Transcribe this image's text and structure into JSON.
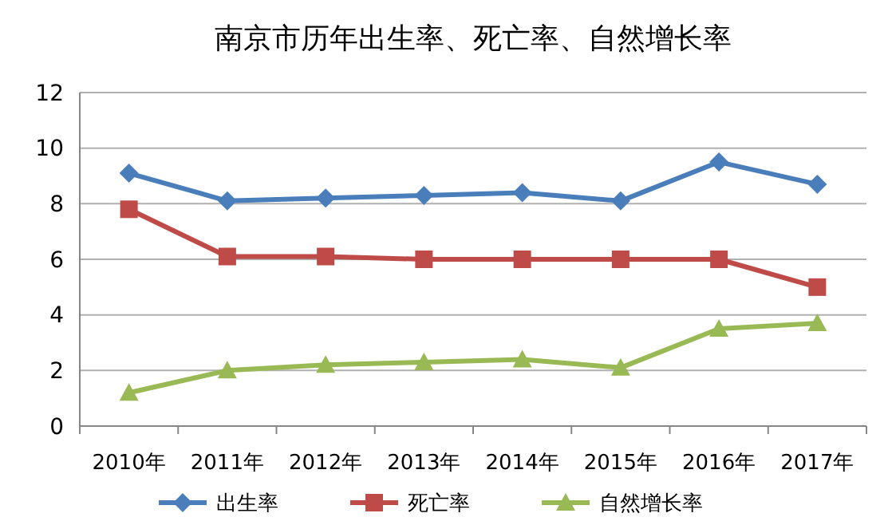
{
  "chart_data": {
    "type": "line",
    "title": "南京市历年出生率、死亡率、自然增长率",
    "categories": [
      "2010年",
      "2011年",
      "2012年",
      "2013年",
      "2014年",
      "2015年",
      "2016年",
      "2017年"
    ],
    "series": [
      {
        "name": "出生率",
        "color": "#4a7ebb",
        "marker": "diamond",
        "values": [
          9.1,
          8.1,
          8.2,
          8.3,
          8.4,
          8.1,
          9.5,
          8.7
        ]
      },
      {
        "name": "死亡率",
        "color": "#be4b48",
        "marker": "square",
        "values": [
          7.8,
          6.1,
          6.1,
          6.0,
          6.0,
          6.0,
          6.0,
          5.0
        ]
      },
      {
        "name": "自然增长率",
        "color": "#98b954",
        "marker": "triangle",
        "values": [
          1.2,
          2.0,
          2.2,
          2.3,
          2.4,
          2.1,
          3.5,
          3.7
        ]
      }
    ],
    "ylim": [
      0,
      12
    ],
    "yticks": [
      0,
      2,
      4,
      6,
      8,
      10,
      12
    ],
    "grid": "y",
    "legend": "bottom"
  }
}
